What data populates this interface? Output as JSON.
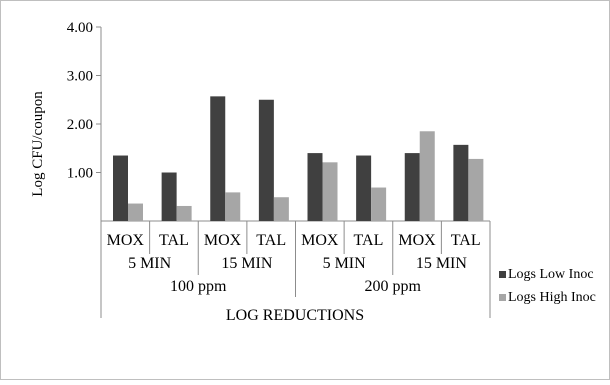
{
  "chart_data": {
    "type": "bar",
    "title": "",
    "xlabel": "LOG REDUCTIONS",
    "ylabel": "Log CFU/coupon",
    "ylim": [
      0,
      4
    ],
    "yticks": [
      "4.00",
      "3.00",
      "2.00",
      "1.00"
    ],
    "ytick_values": [
      4,
      3,
      2,
      1
    ],
    "grid": false,
    "legend_position": "right",
    "categories": [
      "MOX",
      "TAL",
      "MOX",
      "TAL",
      "MOX",
      "TAL",
      "MOX",
      "TAL"
    ],
    "time_groups": [
      {
        "label": "5 MIN"
      },
      {
        "label": "15 MIN"
      },
      {
        "label": "5 MIN"
      },
      {
        "label": "15 MIN"
      }
    ],
    "concentration_groups": [
      {
        "label": "100 ppm"
      },
      {
        "label": "200 ppm"
      }
    ],
    "series": [
      {
        "name": "Logs Low Inoc",
        "color": "#404040",
        "values": [
          1.35,
          1.0,
          2.57,
          2.5,
          1.4,
          1.35,
          1.4,
          1.57
        ]
      },
      {
        "name": "Logs High Inoc",
        "color": "#a6a6a6",
        "values": [
          0.36,
          0.31,
          0.59,
          0.49,
          1.21,
          0.69,
          1.85,
          1.28
        ]
      }
    ]
  }
}
